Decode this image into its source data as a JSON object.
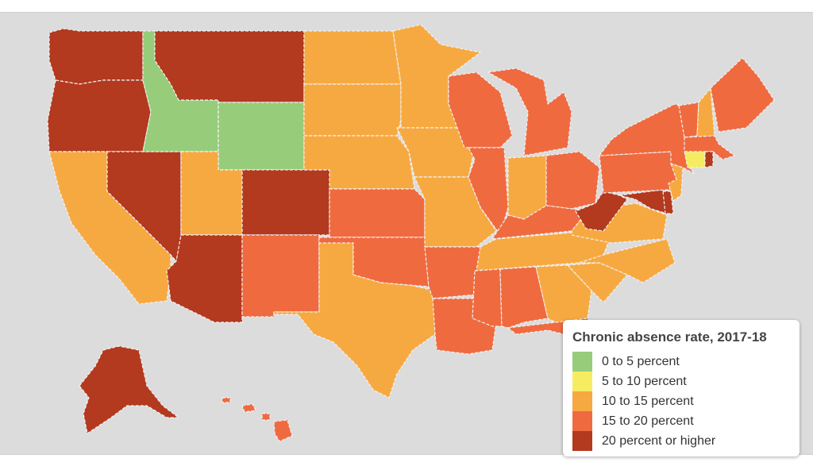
{
  "legend": {
    "title": "Chronic absence rate, 2017-18",
    "items": [
      {
        "label": "0 to 5 percent",
        "color": "#97cd7a"
      },
      {
        "label": "5 to 10 percent",
        "color": "#f6ec61"
      },
      {
        "label": "10 to 15 percent",
        "color": "#f7a941"
      },
      {
        "label": "15 to 20 percent",
        "color": "#f06a40"
      },
      {
        "label": "20 percent or higher",
        "color": "#b3391f"
      }
    ]
  },
  "states": {
    "WA": "20 percent or higher",
    "OR": "20 percent or higher",
    "CA": "10 to 15 percent",
    "NV": "20 percent or higher",
    "ID": "0 to 5 percent",
    "MT": "20 percent or higher",
    "WY": "0 to 5 percent",
    "UT": "10 to 15 percent",
    "CO": "20 percent or higher",
    "AZ": "20 percent or higher",
    "NM": "15 to 20 percent",
    "TX": "10 to 15 percent",
    "ND": "10 to 15 percent",
    "SD": "10 to 15 percent",
    "NE": "10 to 15 percent",
    "KS": "15 to 20 percent",
    "OK": "15 to 20 percent",
    "MN": "10 to 15 percent",
    "IA": "10 to 15 percent",
    "MO": "10 to 15 percent",
    "AR": "15 to 20 percent",
    "LA": "15 to 20 percent",
    "WI": "15 to 20 percent",
    "IL": "15 to 20 percent",
    "MI": "15 to 20 percent",
    "IN": "10 to 15 percent",
    "OH": "15 to 20 percent",
    "KY": "15 to 20 percent",
    "TN": "10 to 15 percent",
    "MS": "15 to 20 percent",
    "AL": "15 to 20 percent",
    "GA": "10 to 15 percent",
    "FL": "15 to 20 percent",
    "SC": "10 to 15 percent",
    "NC": "10 to 15 percent",
    "VA": "10 to 15 percent",
    "WV": "20 percent or higher",
    "MD": "20 percent or higher",
    "DE": "20 percent or higher",
    "PA": "15 to 20 percent",
    "NJ": "10 to 15 percent",
    "NY": "15 to 20 percent",
    "CT": "5 to 10 percent",
    "RI": "20 percent or higher",
    "MA": "15 to 20 percent",
    "VT": "15 to 20 percent",
    "NH": "10 to 15 percent",
    "ME": "15 to 20 percent",
    "AK": "20 percent or higher",
    "HI": "15 to 20 percent"
  }
}
